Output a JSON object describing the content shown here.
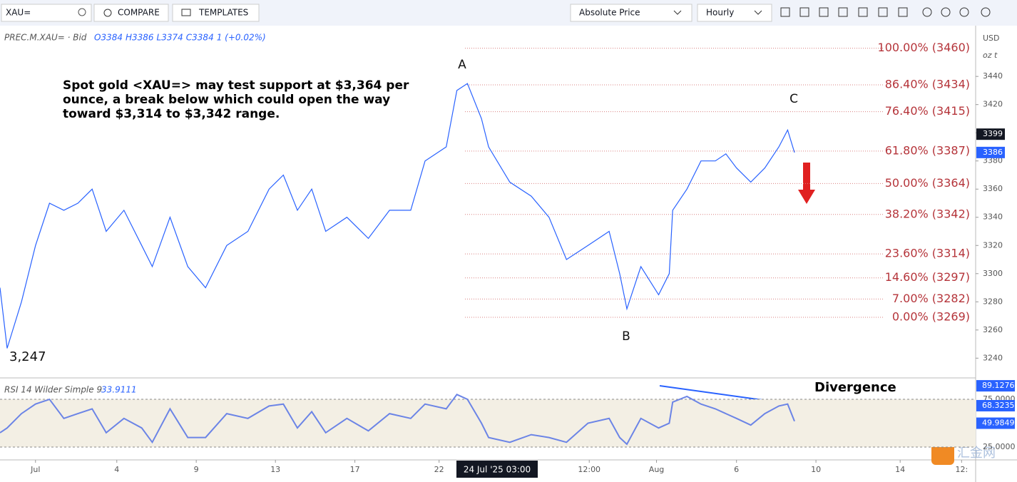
{
  "toolbar": {
    "symbol": "XAU=",
    "compare": "COMPARE",
    "templates": "TEMPLATES",
    "price_mode": "Absolute Price",
    "interval": "Hourly"
  },
  "watermark": "汇金网",
  "chart_data": [
    {
      "type": "line",
      "legend": "PREC.M.XAU= · Bid",
      "ohlc_labels": [
        "O3384",
        "H3386",
        "L3374",
        "C3384",
        "1 (+0.02%)"
      ],
      "color": "#2962ff",
      "x": [
        -1.34,
        -1.07,
        -0.53,
        0,
        0.53,
        1.07,
        1.6,
        2.14,
        2.67,
        3.34,
        4.01,
        4.41,
        5.08,
        5.75,
        6.42,
        7.22,
        8.02,
        8.82,
        9.36,
        9.89,
        10.43,
        10.96,
        11.76,
        12.57,
        13.37,
        14.17,
        14.71,
        15.51,
        15.91,
        16.31,
        16.84,
        17.11,
        17.91,
        18.72,
        19.39,
        20.05,
        20.86,
        21.66,
        22.06,
        22.33,
        22.86,
        23.53,
        23.93,
        24.06,
        24.6,
        25.13,
        25.67,
        26.07,
        26.47,
        27.01,
        27.54,
        28.07,
        28.4,
        28.66
      ],
      "values": [
        3290,
        3247,
        3280,
        3320,
        3350,
        3345,
        3350,
        3360,
        3330,
        3345,
        3320,
        3305,
        3340,
        3305,
        3290,
        3320,
        3330,
        3360,
        3370,
        3345,
        3360,
        3330,
        3340,
        3325,
        3345,
        3345,
        3380,
        3390,
        3430,
        3435,
        3410,
        3390,
        3365,
        3355,
        3340,
        3310,
        3320,
        3330,
        3300,
        3275,
        3305,
        3285,
        3300,
        3345,
        3360,
        3380,
        3380,
        3385,
        3375,
        3365,
        3375,
        3390,
        3402,
        3386
      ],
      "xlim": [
        -1.34,
        35.5
      ],
      "ylim": [
        3227,
        3474
      ],
      "yticks": [
        3240,
        3260,
        3280,
        3300,
        3320,
        3340,
        3360,
        3380,
        3400,
        3420,
        3440
      ],
      "xticks": [
        {
          "value": 0,
          "label": "Jul"
        },
        {
          "value": 3.07,
          "label": "4"
        },
        {
          "value": 6.07,
          "label": "9"
        },
        {
          "value": 9.06,
          "label": "13"
        },
        {
          "value": 12.06,
          "label": "17"
        },
        {
          "value": 15.24,
          "label": "22"
        },
        {
          "value": 20.91,
          "label": "12:00"
        },
        {
          "value": 23.45,
          "label": "Aug"
        },
        {
          "value": 26.47,
          "label": "6"
        },
        {
          "value": 29.47,
          "label": "10"
        },
        {
          "value": 32.65,
          "label": "14"
        },
        {
          "value": 34.97,
          "label": "12:"
        }
      ],
      "crosshair_x": {
        "value": 17.43,
        "label": "24 Jul '25  03:00"
      },
      "currency": "USD",
      "unit": "oz t",
      "levels": [
        {
          "label": "100.00% (3460)",
          "value": 3460
        },
        {
          "label": "86.40% (3434)",
          "value": 3434
        },
        {
          "label": "76.40% (3415)",
          "value": 3415
        },
        {
          "label": "61.80% (3387)",
          "value": 3387
        },
        {
          "label": "50.00% (3364)",
          "value": 3364
        },
        {
          "label": "38.20% (3342)",
          "value": 3342
        },
        {
          "label": "23.60% (3314)",
          "value": 3314
        },
        {
          "label": "14.60% (3297)",
          "value": 3297
        },
        {
          "label": "7.00% (3282)",
          "value": 3282
        },
        {
          "label": "0.00% (3269)",
          "value": 3269
        }
      ],
      "annotation": [
        "Spot gold <XAU=> may test support at $3,364 per",
        "ounce, a break below which could open the way",
        "toward $3,314 to $3,342 range."
      ],
      "wave_labels": [
        "A",
        "B",
        "C"
      ],
      "low_label": "3,247",
      "price_badges": [
        3399,
        3386
      ],
      "badge_colors": [
        "#131722",
        "#2962ff"
      ]
    },
    {
      "type": "line",
      "title": "RSI 14 Wilder Simple 9",
      "last_value": 33.9111,
      "color": "#6b84e6",
      "x": [
        -1.34,
        -1.07,
        -0.53,
        0,
        0.53,
        1.07,
        1.6,
        2.14,
        2.67,
        3.34,
        4.01,
        4.41,
        5.08,
        5.75,
        6.42,
        7.22,
        8.02,
        8.82,
        9.36,
        9.89,
        10.43,
        10.96,
        11.76,
        12.57,
        13.37,
        14.17,
        14.71,
        15.51,
        15.91,
        16.31,
        16.84,
        17.11,
        17.91,
        18.72,
        19.39,
        20.05,
        20.86,
        21.66,
        22.06,
        22.33,
        22.86,
        23.53,
        23.93,
        24.06,
        24.6,
        25.13,
        25.67,
        26.07,
        26.47,
        27.01,
        27.54,
        28.07,
        28.4,
        28.66
      ],
      "values": [
        40,
        45,
        60,
        70,
        75,
        55,
        60,
        65,
        40,
        55,
        45,
        30,
        65,
        35,
        35,
        60,
        55,
        68,
        70,
        45,
        62,
        40,
        55,
        42,
        60,
        55,
        70,
        65,
        80,
        75,
        50,
        35,
        30,
        38,
        35,
        30,
        50,
        55,
        35,
        28,
        55,
        45,
        50,
        72,
        78,
        70,
        65,
        60,
        55,
        48,
        60,
        68,
        70,
        52
      ],
      "xlim": [
        -1.34,
        35.5
      ],
      "ylim": [
        11.6,
        95.9
      ],
      "yticks": [
        {
          "value": 75,
          "label": "75.0000"
        },
        {
          "value": 25,
          "label": "25.0000"
        }
      ],
      "badges": [
        89.1276,
        68.3235,
        49.9849
      ],
      "annotation": "Divergence"
    }
  ]
}
